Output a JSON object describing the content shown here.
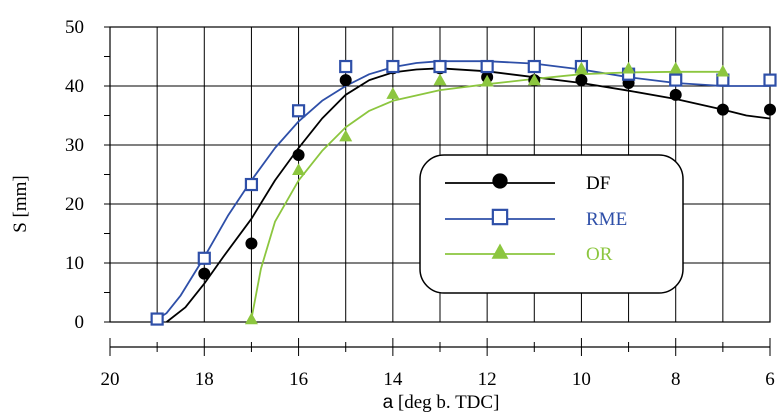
{
  "chart_data": {
    "type": "line",
    "xlabel_symbol": "a",
    "xlabel_unit": " [deg b. TDC]",
    "ylabel": "S [mm]",
    "xlim": [
      20,
      6
    ],
    "ylim": [
      0,
      50
    ],
    "x_ticks": [
      20,
      18,
      16,
      14,
      12,
      10,
      8,
      6
    ],
    "y_ticks": [
      0,
      10,
      20,
      30,
      40,
      50
    ],
    "grid": true,
    "legend_position": "center-right",
    "series": [
      {
        "name": "DF",
        "color": "#000000",
        "marker": "circle",
        "points": [
          [
            19,
            0.5
          ],
          [
            18,
            8.2
          ],
          [
            17,
            13.3
          ],
          [
            16,
            28.3
          ],
          [
            15,
            41
          ],
          [
            14,
            43
          ],
          [
            13,
            43
          ],
          [
            12,
            41.5
          ],
          [
            11,
            41
          ],
          [
            10,
            41
          ],
          [
            9,
            40.5
          ],
          [
            8,
            38.5
          ],
          [
            7,
            36
          ],
          [
            6,
            36
          ]
        ],
        "curve": [
          [
            18.8,
            0
          ],
          [
            18.4,
            2.5
          ],
          [
            18,
            6.5
          ],
          [
            17.6,
            11
          ],
          [
            17,
            17.5
          ],
          [
            16.5,
            24
          ],
          [
            16,
            29.5
          ],
          [
            15.5,
            34.5
          ],
          [
            15,
            38.5
          ],
          [
            14.5,
            41
          ],
          [
            14,
            42.3
          ],
          [
            13.5,
            42.8
          ],
          [
            13,
            43
          ],
          [
            12,
            42.5
          ],
          [
            11,
            41.5
          ],
          [
            10,
            40.5
          ],
          [
            9,
            39.2
          ],
          [
            8,
            37.8
          ],
          [
            7,
            36
          ],
          [
            6.5,
            35
          ],
          [
            6,
            34.5
          ]
        ]
      },
      {
        "name": "RME",
        "color": "#2e4fa8",
        "marker": "square",
        "points": [
          [
            19,
            0.5
          ],
          [
            18,
            10.8
          ],
          [
            17,
            23.3
          ],
          [
            16,
            35.8
          ],
          [
            15,
            43.3
          ],
          [
            14,
            43.3
          ],
          [
            13,
            43.3
          ],
          [
            12,
            43.3
          ],
          [
            11,
            43.3
          ],
          [
            10,
            43.3
          ],
          [
            9,
            42
          ],
          [
            8,
            41
          ],
          [
            7,
            41
          ],
          [
            6,
            41
          ]
        ],
        "curve": [
          [
            19,
            0.5
          ],
          [
            18.8,
            1.5
          ],
          [
            18.5,
            4.5
          ],
          [
            18,
            11
          ],
          [
            17.5,
            18
          ],
          [
            17,
            24
          ],
          [
            16.5,
            29.5
          ],
          [
            16,
            34
          ],
          [
            15.5,
            37.5
          ],
          [
            15,
            40
          ],
          [
            14.5,
            42
          ],
          [
            14,
            43.2
          ],
          [
            13.5,
            43.9
          ],
          [
            13,
            44.2
          ],
          [
            12,
            44.2
          ],
          [
            11,
            43.8
          ],
          [
            10,
            42.8
          ],
          [
            9,
            41.5
          ],
          [
            8,
            40.5
          ],
          [
            7,
            40
          ],
          [
            6,
            40
          ]
        ]
      },
      {
        "name": "OR",
        "color": "#8cc63f",
        "marker": "triangle",
        "points": [
          [
            17,
            0.5
          ],
          [
            16,
            25.8
          ],
          [
            15,
            31.5
          ],
          [
            14,
            38.7
          ],
          [
            13,
            41
          ],
          [
            12,
            40.8
          ],
          [
            11,
            41
          ],
          [
            10,
            43
          ],
          [
            9,
            43
          ],
          [
            8,
            43
          ],
          [
            7,
            42.5
          ]
        ],
        "curve": [
          [
            17,
            0.5
          ],
          [
            16.8,
            9
          ],
          [
            16.5,
            17
          ],
          [
            16,
            24
          ],
          [
            15.5,
            29
          ],
          [
            15,
            33
          ],
          [
            14.5,
            35.8
          ],
          [
            14,
            37.5
          ],
          [
            13,
            39.3
          ],
          [
            12,
            40.3
          ],
          [
            11,
            41.2
          ],
          [
            10,
            42
          ],
          [
            9,
            42.3
          ],
          [
            8,
            42.4
          ],
          [
            7,
            42.4
          ]
        ]
      }
    ]
  }
}
